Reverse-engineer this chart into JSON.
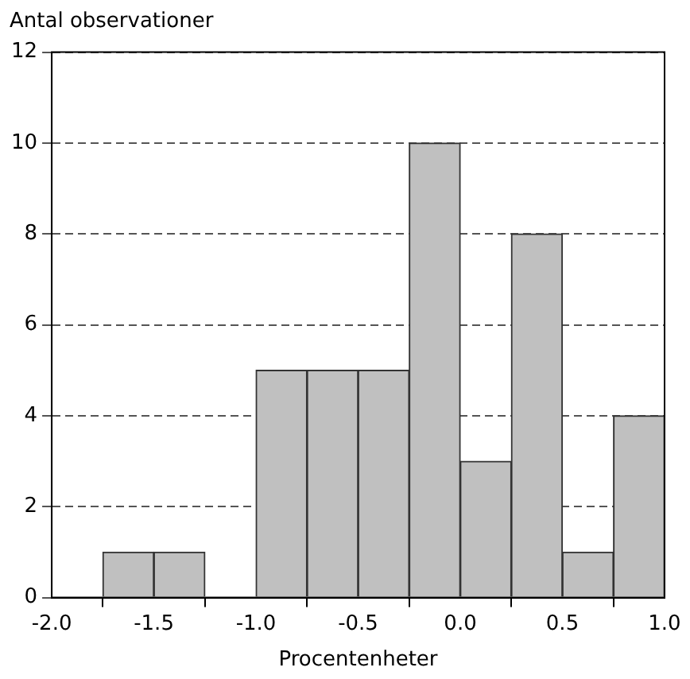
{
  "chart_data": {
    "type": "histogram",
    "xlabel": "Procentenheter",
    "ylabel": "Antal observationer",
    "bins": [
      -2,
      -1.75,
      -1.5,
      -1.25,
      -1,
      -0.75,
      -0.5,
      -0.25,
      0,
      0.25,
      0.5,
      0.75,
      1
    ],
    "values": [
      0,
      1,
      1,
      0,
      5,
      5,
      5,
      10,
      3,
      8,
      1,
      4
    ],
    "color": "#c0c0c0",
    "xlim": [
      -2,
      1
    ],
    "xticks": [
      {
        "value": -2,
        "label": "-2.0"
      },
      {
        "value": -1.5,
        "label": "-1.5"
      },
      {
        "value": -1,
        "label": "-1.0"
      },
      {
        "value": -0.5,
        "label": "-0.5"
      },
      {
        "value": 0,
        "label": "0.0"
      },
      {
        "value": 0.5,
        "label": "0.5"
      },
      {
        "value": 1,
        "label": "1.0"
      }
    ],
    "ylim": [
      0,
      12
    ],
    "yticks": [
      0,
      2,
      4,
      6,
      8,
      10,
      12
    ],
    "grid": "y",
    "line_style": "dashed"
  }
}
